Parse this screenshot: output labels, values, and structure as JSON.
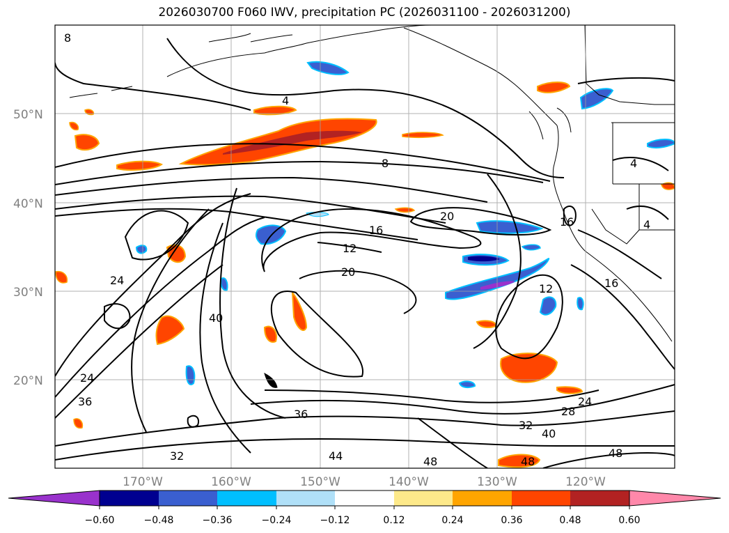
{
  "title": "2026030700 F060 IWV, precipitation PC (2026031100 - 2026031200)",
  "lat_labels": [
    "50°N",
    "40°N",
    "30°N",
    "20°N"
  ],
  "lon_labels": [
    "170°W",
    "160°W",
    "150°W",
    "140°W",
    "130°W",
    "120°W"
  ],
  "colorbar": {
    "ticks": [
      "−0.60",
      "−0.48",
      "−0.36",
      "−0.24",
      "−0.12",
      "0.12",
      "0.24",
      "0.36",
      "0.48",
      "0.60"
    ],
    "colors": [
      "#9932cc",
      "#000090",
      "#3a5fd0",
      "#00bfff",
      "#b0e0f8",
      "#ffffff",
      "#fde98a",
      "#ffa500",
      "#ff4500",
      "#b22222",
      "#ff88aa"
    ]
  },
  "contour_labels": [
    "8",
    "4",
    "8",
    "20",
    "16",
    "12",
    "20",
    "24",
    "40",
    "12",
    "16",
    "16",
    "4",
    "4",
    "24",
    "36",
    "36",
    "32",
    "28",
    "24",
    "32",
    "40",
    "44",
    "48",
    "48",
    "48"
  ]
}
